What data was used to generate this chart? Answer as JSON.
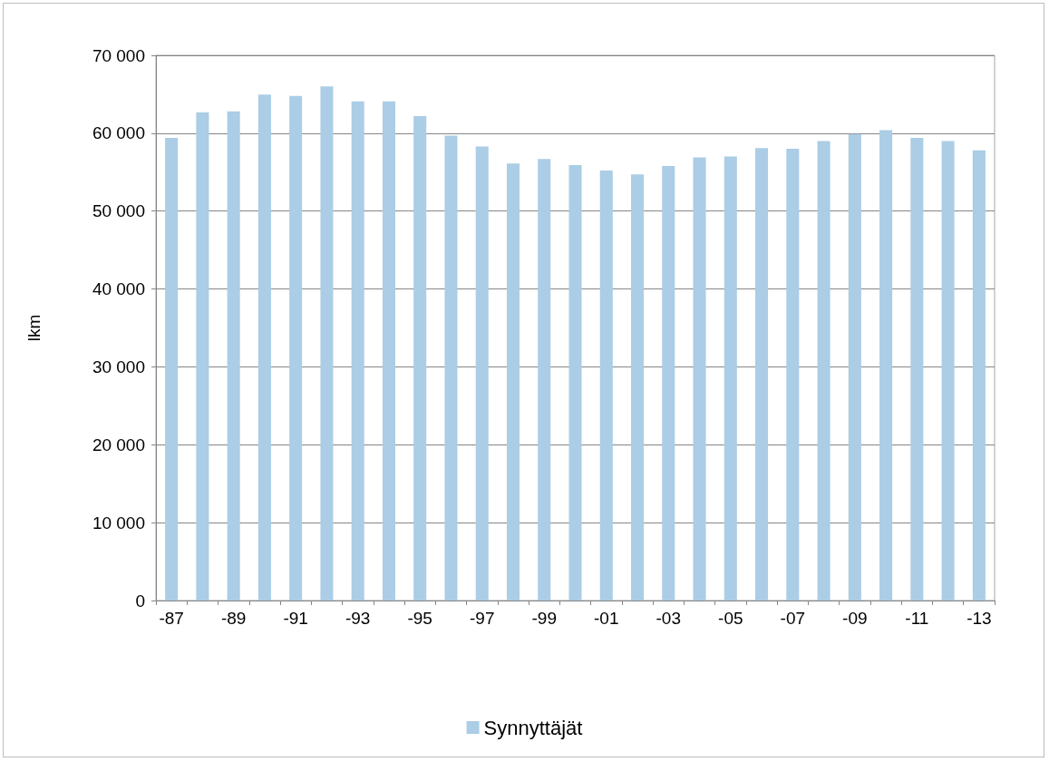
{
  "chart_data": {
    "type": "bar",
    "ylabel": "lkm",
    "categories": [
      "-87",
      null,
      "-89",
      null,
      "-91",
      null,
      "-93",
      null,
      "-95",
      null,
      "-97",
      null,
      "-99",
      null,
      "-01",
      null,
      "-03",
      null,
      "-05",
      null,
      "-07",
      null,
      "-09",
      null,
      "-11",
      null,
      "-13"
    ],
    "series": [
      {
        "name": "Synnyttäjät",
        "color": "#abcde5",
        "values": [
          59400,
          62700,
          62800,
          64950,
          64800,
          66000,
          64100,
          64100,
          62200,
          59700,
          58300,
          56100,
          56700,
          55900,
          55200,
          54700,
          55800,
          56900,
          57000,
          58100,
          58000,
          59000,
          59900,
          60400,
          59400,
          59000,
          57800
        ]
      }
    ],
    "ylim": [
      0,
      70000
    ],
    "yticks": [
      {
        "value": 0,
        "label": "0"
      },
      {
        "value": 10000,
        "label": "10 000"
      },
      {
        "value": 20000,
        "label": "20 000"
      },
      {
        "value": 30000,
        "label": "30 000"
      },
      {
        "value": 40000,
        "label": "40 000"
      },
      {
        "value": 50000,
        "label": "50 000"
      },
      {
        "value": 60000,
        "label": "60 000"
      },
      {
        "value": 70000,
        "label": "70 000"
      }
    ],
    "grid": "y",
    "legend": "bottom"
  }
}
